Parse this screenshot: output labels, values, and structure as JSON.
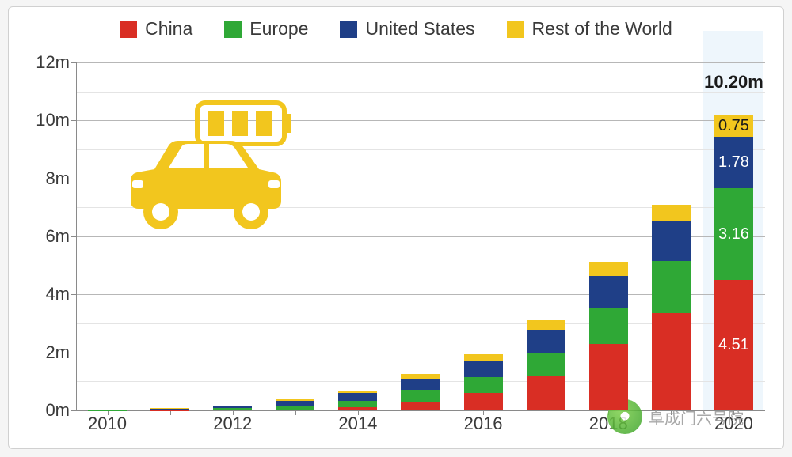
{
  "chart": {
    "type": "stacked-bar",
    "background_color": "#ffffff",
    "grid_color_major": "#b7b7b7",
    "grid_color_minor": "#e4e4e4",
    "axis_color": "#8a8a8a",
    "text_color": "#3a3a3a",
    "ymax": 12,
    "y_step": 2,
    "y_unit": "m",
    "bar_highlight_bg": "#eef6fc",
    "legend": [
      {
        "label": "China",
        "color": "#d92e24"
      },
      {
        "label": "Europe",
        "color": "#2fa836"
      },
      {
        "label": "United States",
        "color": "#1f3f87"
      },
      {
        "label": "Rest of the World",
        "color": "#f2c61e"
      }
    ],
    "years": [
      "2010",
      "2011",
      "2012",
      "2013",
      "2014",
      "2015",
      "2016",
      "2017",
      "2018",
      "2019",
      "2020"
    ],
    "xlabels": [
      "2010",
      "2012",
      "2014",
      "2016",
      "2018",
      "2020"
    ],
    "series": {
      "china": [
        0.0,
        0.01,
        0.02,
        0.03,
        0.1,
        0.3,
        0.6,
        1.2,
        2.3,
        3.35,
        4.51
      ],
      "europe": [
        0.01,
        0.03,
        0.06,
        0.12,
        0.22,
        0.4,
        0.55,
        0.8,
        1.25,
        1.8,
        3.16
      ],
      "us": [
        0.01,
        0.03,
        0.07,
        0.18,
        0.28,
        0.4,
        0.55,
        0.75,
        1.1,
        1.4,
        1.78
      ],
      "rest": [
        0.0,
        0.01,
        0.02,
        0.04,
        0.08,
        0.15,
        0.25,
        0.35,
        0.45,
        0.55,
        0.75
      ]
    },
    "total_label": "10.20m",
    "last_bar_value_labels": {
      "china": "4.51",
      "europe": "3.16",
      "us": "1.78",
      "rest": "0.75"
    },
    "value_label_colors": {
      "china": "#ffffff",
      "europe": "#ffffff",
      "us": "#ffffff",
      "rest": "#1a1a1a"
    },
    "icon_color": "#f2c61e",
    "bar_width_ratio": 0.62
  },
  "watermark": {
    "text": "阜成门六号院"
  }
}
